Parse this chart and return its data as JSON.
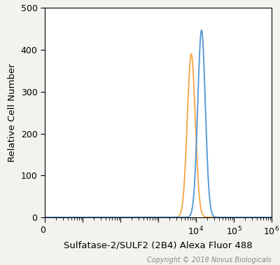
{
  "xlabel": "Sulfatase-2/SULF2 (2B4) Alexa Fluor 488",
  "ylabel": "Relative Cell Number",
  "copyright": "Copyright © 2018 Novus Biologicals",
  "ylim": [
    0,
    500
  ],
  "xlim_left": 1,
  "xlim_right": 1000000,
  "orange_peak_x": 7500,
  "orange_peak_y": 390,
  "orange_sigma_log": 0.105,
  "blue_peak_x": 14000,
  "blue_peak_y": 447,
  "blue_sigma_log": 0.1,
  "orange_color": "#F5A94E",
  "blue_color": "#5B9BD5",
  "plot_bg_color": "#FFFFFF",
  "fig_bg_color": "#F2F2EE",
  "tick_label_size": 9,
  "axis_label_size": 9.5,
  "copyright_size": 7,
  "yticks": [
    0,
    100,
    200,
    300,
    400,
    500
  ]
}
